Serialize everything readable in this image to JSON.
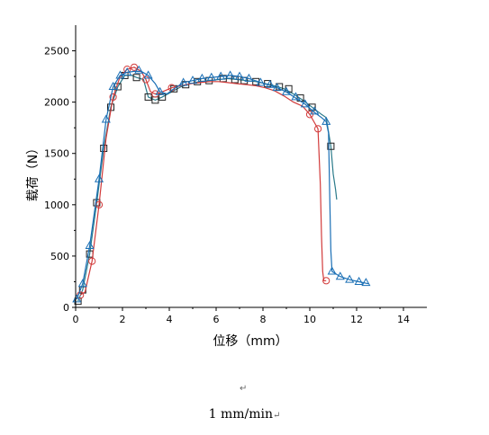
{
  "chart_data": {
    "type": "line",
    "xlabel": "位移（mm）",
    "ylabel": "载荷（N）",
    "xlim": [
      0,
      15
    ],
    "ylim": [
      0,
      2750
    ],
    "xticks": [
      0,
      2,
      4,
      6,
      8,
      10,
      12,
      14
    ],
    "yticks": [
      0,
      500,
      1000,
      1500,
      2000,
      2500
    ],
    "grid": false,
    "series": [
      {
        "color": "#1f1f1f",
        "marker": "square",
        "points": [
          [
            0.1,
            60
          ],
          [
            0.3,
            170
          ],
          [
            0.6,
            520
          ],
          [
            0.9,
            1020
          ],
          [
            1.2,
            1550
          ],
          [
            1.5,
            1950
          ],
          [
            1.8,
            2150
          ],
          [
            2.1,
            2260
          ],
          [
            2.4,
            2260
          ],
          [
            2.6,
            2240
          ],
          [
            2.9,
            2220
          ],
          [
            3.1,
            2050
          ],
          [
            3.4,
            2020
          ],
          [
            3.7,
            2050
          ],
          [
            4.1,
            2100
          ],
          [
            4.5,
            2150
          ],
          [
            4.9,
            2180
          ],
          [
            5.3,
            2200
          ],
          [
            5.7,
            2210
          ],
          [
            6.1,
            2220
          ],
          [
            6.5,
            2230
          ],
          [
            6.9,
            2220
          ],
          [
            7.3,
            2210
          ],
          [
            7.7,
            2200
          ],
          [
            8.1,
            2180
          ],
          [
            8.5,
            2160
          ],
          [
            8.9,
            2130
          ],
          [
            9.3,
            2080
          ],
          [
            9.7,
            2020
          ],
          [
            10.1,
            1950
          ],
          [
            10.5,
            1880
          ],
          [
            10.7,
            1850
          ],
          [
            10.9,
            1570
          ],
          [
            11.0,
            1300
          ],
          [
            11.1,
            1150
          ],
          [
            11.15,
            1050
          ]
        ],
        "markers": [
          [
            0.1,
            60
          ],
          [
            0.3,
            170
          ],
          [
            0.6,
            520
          ],
          [
            0.9,
            1020
          ],
          [
            1.2,
            1550
          ],
          [
            1.5,
            1950
          ],
          [
            1.8,
            2150
          ],
          [
            2.1,
            2260
          ],
          [
            2.6,
            2240
          ],
          [
            3.1,
            2050
          ],
          [
            3.4,
            2020
          ],
          [
            3.7,
            2050
          ],
          [
            4.2,
            2130
          ],
          [
            4.7,
            2170
          ],
          [
            5.2,
            2200
          ],
          [
            5.7,
            2210
          ],
          [
            6.3,
            2230
          ],
          [
            6.8,
            2220
          ],
          [
            7.2,
            2210
          ],
          [
            7.7,
            2200
          ],
          [
            8.2,
            2180
          ],
          [
            8.7,
            2150
          ],
          [
            9.1,
            2130
          ],
          [
            9.6,
            2040
          ],
          [
            10.1,
            1950
          ],
          [
            10.9,
            1570
          ]
        ],
        "line_color": "#2a7a8a"
      },
      {
        "color": "#d23b3b",
        "marker": "circle",
        "points": [
          [
            0.2,
            120
          ],
          [
            0.4,
            150
          ],
          [
            0.7,
            450
          ],
          [
            1.0,
            1000
          ],
          [
            1.3,
            1650
          ],
          [
            1.6,
            2050
          ],
          [
            1.9,
            2250
          ],
          [
            2.2,
            2320
          ],
          [
            2.5,
            2340
          ],
          [
            2.8,
            2300
          ],
          [
            3.0,
            2220
          ],
          [
            3.2,
            2100
          ],
          [
            3.4,
            2080
          ],
          [
            3.7,
            2100
          ],
          [
            4.1,
            2140
          ],
          [
            4.5,
            2160
          ],
          [
            4.9,
            2180
          ],
          [
            5.3,
            2190
          ],
          [
            5.7,
            2200
          ],
          [
            6.1,
            2200
          ],
          [
            6.5,
            2190
          ],
          [
            6.9,
            2180
          ],
          [
            7.3,
            2170
          ],
          [
            7.7,
            2160
          ],
          [
            8.1,
            2140
          ],
          [
            8.5,
            2110
          ],
          [
            8.9,
            2060
          ],
          [
            9.3,
            2000
          ],
          [
            9.7,
            1960
          ],
          [
            10.0,
            1880
          ],
          [
            10.2,
            1800
          ],
          [
            10.35,
            1740
          ],
          [
            10.45,
            1200
          ],
          [
            10.5,
            700
          ],
          [
            10.55,
            350
          ],
          [
            10.6,
            260
          ],
          [
            10.7,
            260
          ]
        ],
        "markers": [
          [
            0.2,
            120
          ],
          [
            0.7,
            450
          ],
          [
            1.0,
            1000
          ],
          [
            1.6,
            2050
          ],
          [
            2.2,
            2320
          ],
          [
            2.5,
            2340
          ],
          [
            3.0,
            2220
          ],
          [
            3.4,
            2080
          ],
          [
            4.1,
            2140
          ],
          [
            10.0,
            1880
          ],
          [
            10.35,
            1740
          ],
          [
            10.7,
            260
          ]
        ],
        "line_color": "#d23b3b"
      },
      {
        "color": "#1a6fb5",
        "marker": "triangle",
        "points": [
          [
            0.05,
            80
          ],
          [
            0.3,
            230
          ],
          [
            0.6,
            600
          ],
          [
            1.0,
            1250
          ],
          [
            1.3,
            1830
          ],
          [
            1.6,
            2150
          ],
          [
            1.9,
            2260
          ],
          [
            2.2,
            2290
          ],
          [
            2.5,
            2300
          ],
          [
            2.8,
            2300
          ],
          [
            3.1,
            2260
          ],
          [
            3.4,
            2180
          ],
          [
            3.6,
            2100
          ],
          [
            3.9,
            2080
          ],
          [
            4.2,
            2130
          ],
          [
            4.6,
            2190
          ],
          [
            5.0,
            2210
          ],
          [
            5.4,
            2230
          ],
          [
            5.8,
            2240
          ],
          [
            6.2,
            2250
          ],
          [
            6.6,
            2260
          ],
          [
            7.0,
            2250
          ],
          [
            7.4,
            2230
          ],
          [
            7.8,
            2200
          ],
          [
            8.2,
            2170
          ],
          [
            8.6,
            2140
          ],
          [
            9.0,
            2100
          ],
          [
            9.4,
            2040
          ],
          [
            9.8,
            1980
          ],
          [
            10.2,
            1900
          ],
          [
            10.5,
            1850
          ],
          [
            10.7,
            1810
          ],
          [
            10.8,
            1700
          ],
          [
            10.85,
            1100
          ],
          [
            10.9,
            550
          ],
          [
            10.95,
            350
          ],
          [
            11.3,
            300
          ],
          [
            11.7,
            270
          ],
          [
            12.1,
            250
          ],
          [
            12.5,
            230
          ]
        ],
        "markers": [
          [
            0.05,
            80
          ],
          [
            0.3,
            230
          ],
          [
            0.6,
            600
          ],
          [
            1.0,
            1250
          ],
          [
            1.3,
            1830
          ],
          [
            1.6,
            2150
          ],
          [
            1.9,
            2260
          ],
          [
            2.2,
            2290
          ],
          [
            2.7,
            2310
          ],
          [
            3.1,
            2260
          ],
          [
            3.6,
            2100
          ],
          [
            4.6,
            2190
          ],
          [
            5.0,
            2210
          ],
          [
            5.4,
            2230
          ],
          [
            5.8,
            2240
          ],
          [
            6.2,
            2250
          ],
          [
            6.6,
            2260
          ],
          [
            7.0,
            2250
          ],
          [
            7.4,
            2230
          ],
          [
            7.9,
            2190
          ],
          [
            8.3,
            2170
          ],
          [
            8.6,
            2140
          ],
          [
            9.0,
            2100
          ],
          [
            9.4,
            2050
          ],
          [
            9.8,
            1980
          ],
          [
            10.2,
            1910
          ],
          [
            10.7,
            1810
          ],
          [
            10.95,
            350
          ],
          [
            11.3,
            300
          ],
          [
            11.7,
            270
          ],
          [
            12.1,
            250
          ],
          [
            12.4,
            240
          ]
        ],
        "line_color": "#1a6fb5"
      }
    ]
  },
  "caption": {
    "mark_top": "↵",
    "text": "1 mm/min",
    "mark_end": "↵"
  }
}
